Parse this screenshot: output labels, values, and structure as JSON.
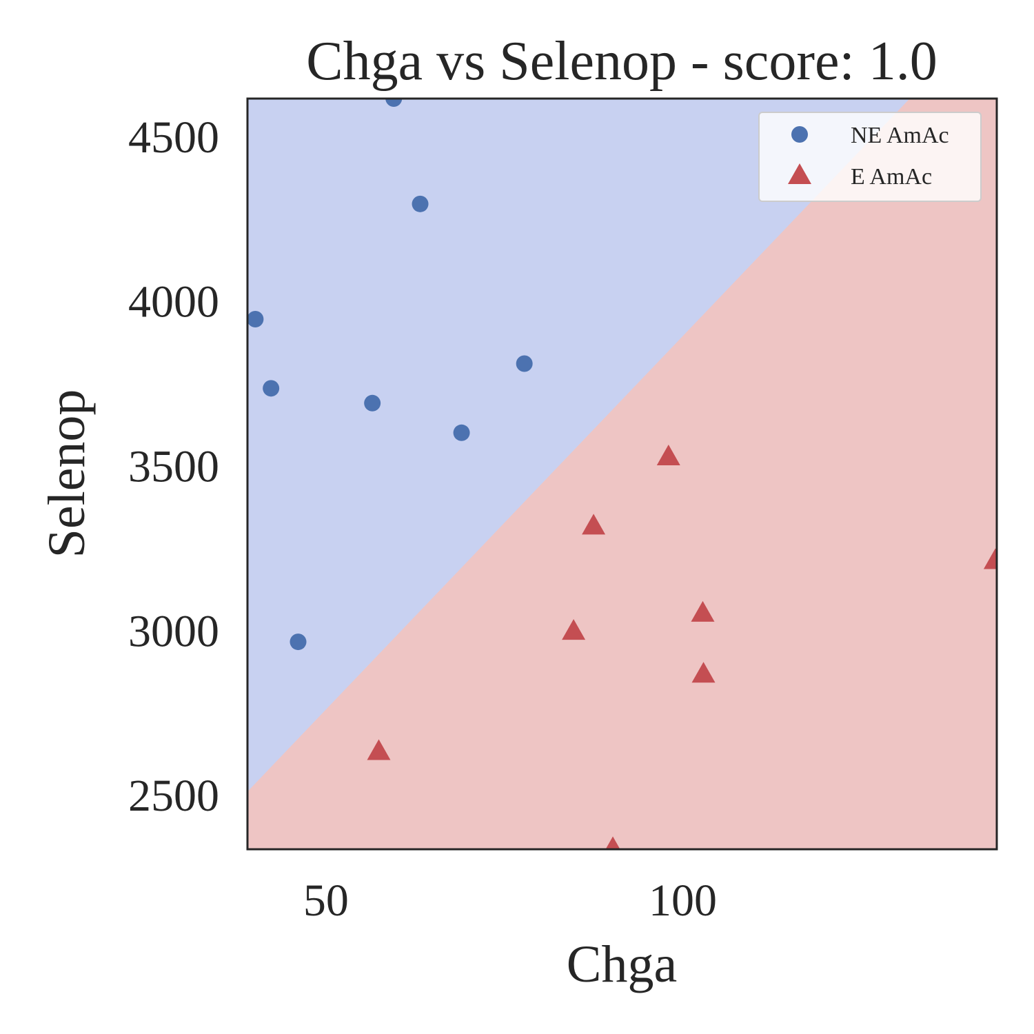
{
  "chart_data": {
    "type": "scatter",
    "title": "Chga vs Selenop - score: 1.0",
    "xlabel": "Chga",
    "ylabel": "Selenop",
    "xlim": [
      39,
      144
    ],
    "ylim": [
      2335,
      4615
    ],
    "xticks": [
      50,
      100
    ],
    "yticks": [
      2500,
      3000,
      3500,
      4000,
      4500
    ],
    "grid": false,
    "legend_position": "top-right",
    "decision_boundary": {
      "points": [
        [
          39,
          2510
        ],
        [
          131.8,
          4615
        ]
      ],
      "upper_left_region": "NE AmAc",
      "lower_right_region": "E AmAc"
    },
    "series": [
      {
        "name": "NE AmAc",
        "marker": "circle",
        "color": "#4c72b0",
        "points": [
          [
            59.5,
            4615
          ],
          [
            63.2,
            4295
          ],
          [
            40.1,
            3945
          ],
          [
            42.3,
            3735
          ],
          [
            56.5,
            3690
          ],
          [
            69.0,
            3600
          ],
          [
            77.8,
            3810
          ],
          [
            46.1,
            2965
          ]
        ]
      },
      {
        "name": "E AmAc",
        "marker": "triangle",
        "color": "#c44e52",
        "points": [
          [
            98.0,
            3525
          ],
          [
            87.5,
            3315
          ],
          [
            143.8,
            3210
          ],
          [
            102.8,
            3050
          ],
          [
            84.7,
            2995
          ],
          [
            102.9,
            2865
          ],
          [
            57.4,
            2630
          ],
          [
            90.2,
            2335
          ]
        ]
      }
    ],
    "colors": {
      "ne_region": "#c8d1f1",
      "e_region": "#eec5c4",
      "frame": "#262626"
    }
  }
}
